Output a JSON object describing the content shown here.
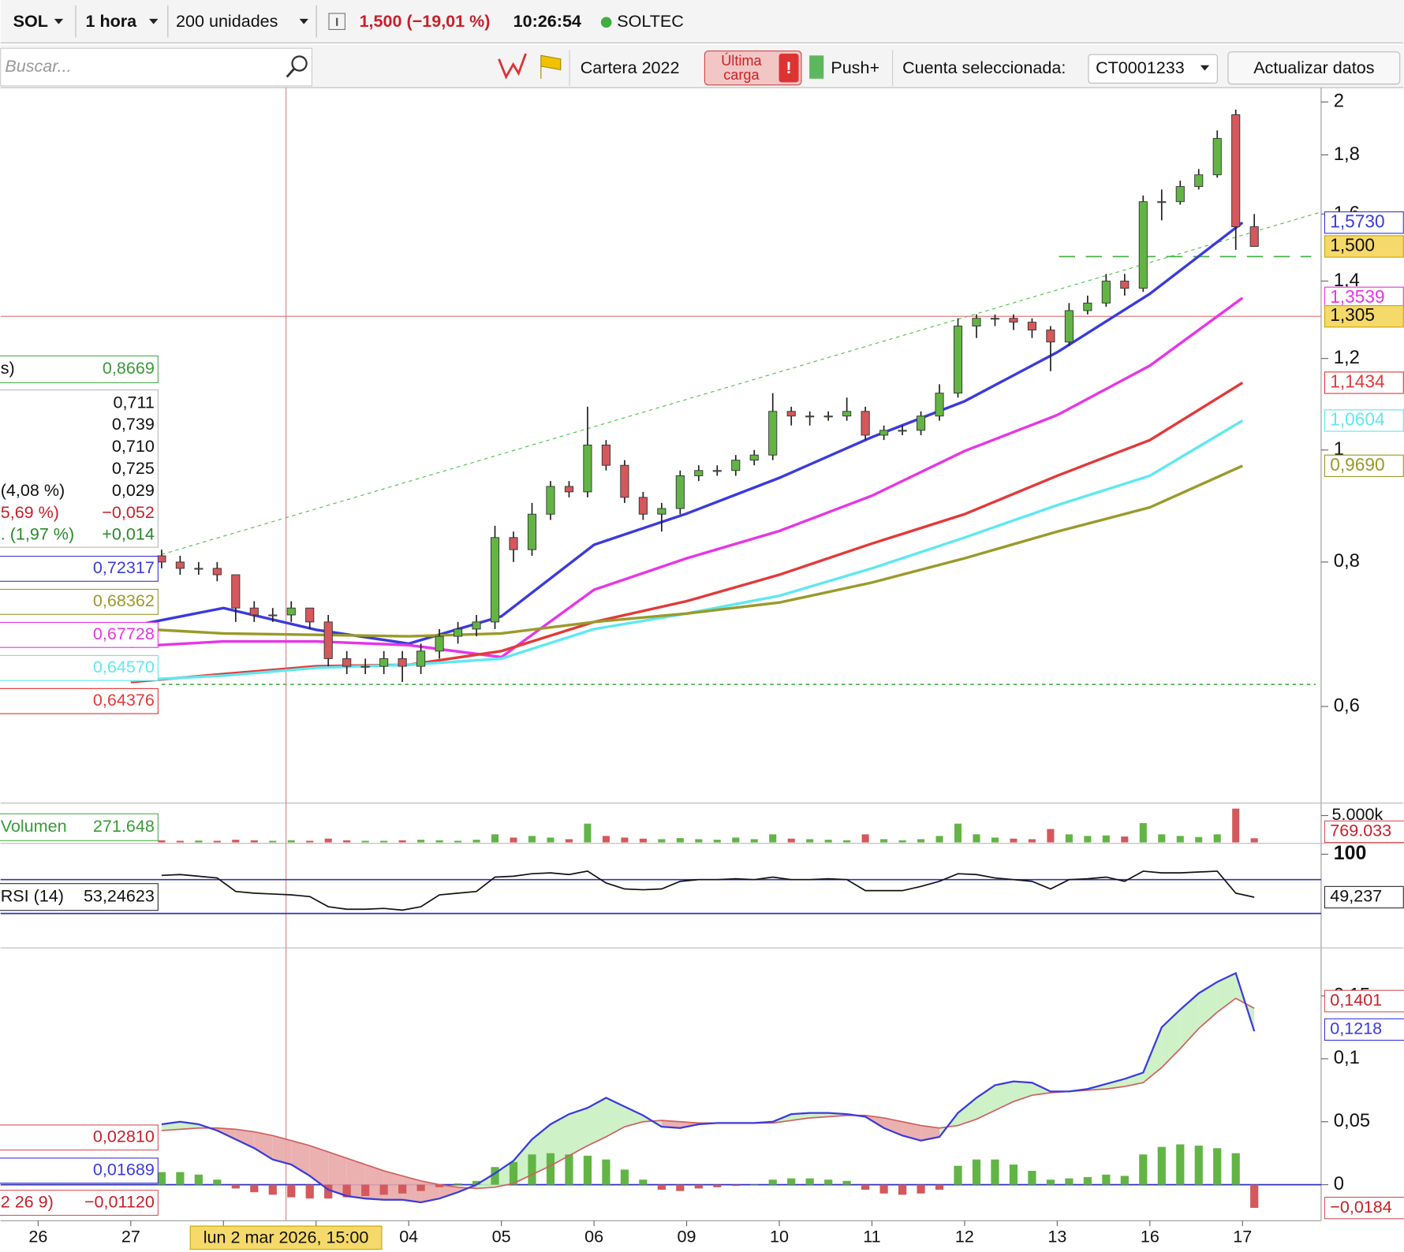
{
  "toolbar": {
    "symbol": "SOL",
    "interval": "1 hora",
    "units": "200 unidades",
    "quote": "1,500 (−19,01 %)",
    "time": "10:26:54",
    "name": "SOLTEC",
    "search": "Buscar...",
    "portfolio": "Cartera 2022",
    "last_load": [
      "Última",
      "carga"
    ],
    "push": "Push+",
    "account_label": "Cuenta seleccionada:",
    "account": "CT0001233",
    "refresh": "Actualizar datos"
  },
  "x_axis": {
    "labels": [
      "26",
      "27",
      null,
      null,
      "04",
      "05",
      "06",
      "09",
      "10",
      "11",
      "12",
      "13",
      "16",
      "17"
    ],
    "crosshair_label": "lun 2 mar 2026, 15:00"
  },
  "price": {
    "log_scale": true,
    "ylim": [
      0.495,
      2.058
    ],
    "yticks": [
      2,
      {
        "value": 1.8,
        "label": "1,8"
      },
      {
        "value": 1.6,
        "label": "1,6"
      },
      {
        "value": 1.4,
        "label": "1,4"
      },
      {
        "value": 1.2,
        "label": "1,2"
      },
      1,
      {
        "value": 0.8,
        "label": "0,8"
      },
      {
        "value": 0.6,
        "label": "0,6"
      }
    ],
    "up_color": "#62b544",
    "down_color": "#d4585c",
    "candles": [
      [
        0.81,
        0.82,
        0.79,
        0.8
      ],
      [
        0.8,
        0.81,
        0.78,
        0.79
      ],
      [
        0.79,
        0.8,
        0.78,
        0.79
      ],
      [
        0.79,
        0.8,
        0.77,
        0.78
      ],
      [
        0.78,
        0.78,
        0.71,
        0.73
      ],
      [
        0.73,
        0.74,
        0.71,
        0.72
      ],
      [
        0.72,
        0.73,
        0.71,
        0.72
      ],
      [
        0.72,
        0.74,
        0.71,
        0.73
      ],
      [
        0.73,
        0.73,
        0.7,
        0.71
      ],
      [
        0.71,
        0.72,
        0.65,
        0.66
      ],
      [
        0.66,
        0.67,
        0.64,
        0.65
      ],
      [
        0.65,
        0.66,
        0.64,
        0.65
      ],
      [
        0.65,
        0.67,
        0.64,
        0.66
      ],
      [
        0.66,
        0.67,
        0.63,
        0.65
      ],
      [
        0.65,
        0.68,
        0.64,
        0.67
      ],
      [
        0.67,
        0.7,
        0.66,
        0.69
      ],
      [
        0.69,
        0.71,
        0.68,
        0.7
      ],
      [
        0.7,
        0.72,
        0.69,
        0.71
      ],
      [
        0.71,
        0.86,
        0.7,
        0.84
      ],
      [
        0.84,
        0.85,
        0.8,
        0.82
      ],
      [
        0.82,
        0.9,
        0.81,
        0.88
      ],
      [
        0.88,
        0.94,
        0.87,
        0.93
      ],
      [
        0.93,
        0.94,
        0.91,
        0.92
      ],
      [
        0.92,
        1.09,
        0.91,
        1.01
      ],
      [
        1.01,
        1.02,
        0.96,
        0.97
      ],
      [
        0.97,
        0.98,
        0.9,
        0.91
      ],
      [
        0.91,
        0.92,
        0.87,
        0.88
      ],
      [
        0.88,
        0.9,
        0.85,
        0.89
      ],
      [
        0.89,
        0.96,
        0.88,
        0.95
      ],
      [
        0.95,
        0.97,
        0.94,
        0.96
      ],
      [
        0.96,
        0.97,
        0.95,
        0.96
      ],
      [
        0.96,
        0.99,
        0.95,
        0.98
      ],
      [
        0.98,
        1.0,
        0.97,
        0.99
      ],
      [
        0.99,
        1.12,
        0.98,
        1.08
      ],
      [
        1.08,
        1.09,
        1.05,
        1.07
      ],
      [
        1.07,
        1.08,
        1.05,
        1.07
      ],
      [
        1.07,
        1.08,
        1.06,
        1.07
      ],
      [
        1.07,
        1.11,
        1.06,
        1.08
      ],
      [
        1.08,
        1.09,
        1.02,
        1.03
      ],
      [
        1.03,
        1.05,
        1.02,
        1.04
      ],
      [
        1.04,
        1.05,
        1.03,
        1.04
      ],
      [
        1.04,
        1.08,
        1.03,
        1.07
      ],
      [
        1.07,
        1.14,
        1.06,
        1.12
      ],
      [
        1.12,
        1.3,
        1.11,
        1.28
      ],
      [
        1.28,
        1.31,
        1.25,
        1.3
      ],
      [
        1.3,
        1.31,
        1.28,
        1.3
      ],
      [
        1.3,
        1.31,
        1.27,
        1.29
      ],
      [
        1.29,
        1.3,
        1.25,
        1.27
      ],
      [
        1.27,
        1.28,
        1.17,
        1.24
      ],
      [
        1.24,
        1.34,
        1.23,
        1.32
      ],
      [
        1.32,
        1.36,
        1.31,
        1.34
      ],
      [
        1.34,
        1.42,
        1.33,
        1.4
      ],
      [
        1.4,
        1.42,
        1.36,
        1.38
      ],
      [
        1.38,
        1.66,
        1.37,
        1.64
      ],
      [
        1.64,
        1.68,
        1.58,
        1.64
      ],
      [
        1.64,
        1.71,
        1.63,
        1.69
      ],
      [
        1.69,
        1.75,
        1.68,
        1.73
      ],
      [
        1.73,
        1.89,
        1.72,
        1.86
      ],
      [
        1.95,
        1.97,
        1.49,
        1.56
      ],
      [
        1.56,
        1.6,
        1.5,
        1.5
      ]
    ],
    "moving_averages": [
      {
        "color": "#3b3bdc",
        "label": "1,5730",
        "left_label": "0,72317",
        "values": [
          null,
          0.704,
          0.73,
          0.699,
          0.68,
          0.718,
          0.828,
          0.881,
          0.946,
          1.026,
          1.102,
          1.215,
          1.365,
          1.573
        ]
      },
      {
        "color": "#e636e6",
        "label": "1,3539",
        "left_label": "0,67728",
        "values": [
          null,
          0.676,
          0.683,
          0.683,
          0.678,
          0.662,
          0.757,
          0.806,
          0.851,
          0.913,
          0.998,
          1.072,
          1.183,
          1.3539
        ]
      },
      {
        "color": "#e23a3a",
        "label": "1,1434",
        "left_label": "0,64376",
        "values": [
          null,
          0.63,
          0.64,
          0.65,
          0.652,
          0.67,
          0.71,
          0.74,
          0.78,
          0.83,
          0.88,
          0.95,
          1.02,
          1.1434
        ]
      },
      {
        "color": "#5fe8f0",
        "label": "1,0604",
        "left_label": "0,64570",
        "values": [
          null,
          0.632,
          0.638,
          0.648,
          0.652,
          0.66,
          0.7,
          0.722,
          0.748,
          0.79,
          0.84,
          0.896,
          0.95,
          1.0604
        ]
      },
      {
        "color": "#9a9a2a",
        "label": "0,9690",
        "left_label": "0,68362",
        "values": [
          null,
          0.701,
          0.694,
          0.692,
          0.69,
          0.694,
          0.71,
          0.722,
          0.738,
          0.768,
          0.806,
          0.85,
          0.892,
          0.969
        ]
      }
    ],
    "crosshair": {
      "value": 1.305,
      "label": "1,305"
    },
    "last": {
      "value": 1.5,
      "label": "1,500"
    },
    "support_lines": [
      0.627,
      1.47
    ]
  },
  "info_panel": {
    "title": "s)",
    "title_value": "0,8669",
    "rows": [
      {
        "value": "0,711"
      },
      {
        "value": "0,739"
      },
      {
        "value": "0,710"
      },
      {
        "value": "0,725"
      },
      {
        "label": "(4,08 %)",
        "value": "0,029"
      },
      {
        "label": "5,69 %)",
        "value": "−0,052"
      },
      {
        "label": ". (1,97 %)",
        "value": "+0,014"
      }
    ]
  },
  "volume": {
    "label": "Volumen",
    "value_label": "271.648",
    "last_label": "769.033",
    "ylim": [
      0,
      7000
    ],
    "yticks": [
      {
        "value": 5000,
        "label": "5.000k"
      }
    ],
    "values": [
      400,
      300,
      350,
      300,
      500,
      400,
      300,
      400,
      300,
      700,
      400,
      300,
      300,
      400,
      500,
      400,
      300,
      500,
      1500,
      900,
      1200,
      900,
      600,
      3500,
      1200,
      900,
      700,
      600,
      800,
      600,
      500,
      900,
      600,
      1500,
      700,
      600,
      500,
      400,
      1500,
      600,
      400,
      600,
      1200,
      3500,
      1500,
      900,
      700,
      600,
      2500,
      1500,
      1200,
      1300,
      1100,
      3600,
      1500,
      1200,
      1000,
      1500,
      6300,
      769.033
    ]
  },
  "rsi": {
    "label": "RSI (14)",
    "value_label": "53,24623",
    "last_label": "49,237",
    "ylim": [
      -10.7,
      112.9
    ],
    "yticks": [
      100
    ],
    "levels": [
      70,
      30
    ],
    "values": [
      75,
      76,
      74,
      72,
      56,
      54,
      53,
      52,
      50,
      38,
      35,
      35,
      36,
      34,
      38,
      52,
      54,
      56,
      73,
      74,
      77,
      78,
      76,
      80,
      66,
      59,
      58,
      59,
      68,
      70,
      70,
      71,
      70,
      73,
      70,
      70,
      71,
      70,
      57,
      57,
      57,
      62,
      68,
      77,
      76,
      72,
      70,
      68,
      59,
      70,
      71,
      73,
      68,
      80,
      78,
      78,
      79,
      80,
      54,
      49.237
    ]
  },
  "macd": {
    "params_label": "2 26 9)",
    "signal_left": "0,02810",
    "macd_left": "0,01689",
    "hist_left": "−0,01120",
    "signal_label": "0,1401",
    "macd_label": "0,1218",
    "hist_label": "−0,0184",
    "ylim": [
      -0.0286,
      0.188
    ],
    "yticks": [
      {
        "value": 0.15,
        "label": "0,15"
      },
      {
        "value": 0.1,
        "label": "0,1"
      },
      {
        "value": 0.05,
        "label": "0,05"
      },
      0
    ],
    "macd": [
      0.048,
      0.05,
      0.048,
      0.043,
      0.036,
      0.029,
      0.02,
      0.016,
      0.007,
      -0.004,
      -0.009,
      -0.011,
      -0.012,
      -0.012,
      -0.014,
      -0.011,
      -0.006,
      0.0,
      0.009,
      0.019,
      0.036,
      0.048,
      0.056,
      0.061,
      0.069,
      0.062,
      0.055,
      0.046,
      0.045,
      0.048,
      0.049,
      0.049,
      0.049,
      0.05,
      0.056,
      0.057,
      0.057,
      0.056,
      0.054,
      0.045,
      0.039,
      0.035,
      0.038,
      0.057,
      0.069,
      0.079,
      0.082,
      0.081,
      0.074,
      0.074,
      0.076,
      0.08,
      0.084,
      0.089,
      0.125,
      0.139,
      0.152,
      0.161,
      0.168,
      0.1218
    ],
    "signal": [
      0.043,
      0.044,
      0.045,
      0.045,
      0.044,
      0.042,
      0.039,
      0.035,
      0.031,
      0.026,
      0.021,
      0.016,
      0.011,
      0.007,
      0.003,
      0.0,
      -0.002,
      -0.003,
      -0.002,
      0.001,
      0.008,
      0.015,
      0.023,
      0.031,
      0.038,
      0.046,
      0.05,
      0.051,
      0.05,
      0.049,
      0.049,
      0.049,
      0.049,
      0.049,
      0.051,
      0.053,
      0.054,
      0.055,
      0.055,
      0.053,
      0.05,
      0.047,
      0.045,
      0.047,
      0.052,
      0.059,
      0.066,
      0.071,
      0.073,
      0.074,
      0.075,
      0.076,
      0.078,
      0.081,
      0.093,
      0.108,
      0.124,
      0.137,
      0.148,
      0.1401
    ],
    "histogram": [
      0.01,
      0.01,
      0.008,
      0.004,
      -0.003,
      -0.006,
      -0.008,
      -0.01,
      -0.011,
      -0.011,
      -0.01,
      -0.009,
      -0.008,
      -0.007,
      -0.005,
      -0.002,
      0.001,
      0.003,
      0.014,
      0.018,
      0.024,
      0.025,
      0.024,
      0.023,
      0.02,
      0.012,
      0.004,
      -0.004,
      -0.005,
      -0.003,
      -0.002,
      -0.001,
      0.0,
      0.004,
      0.005,
      0.005,
      0.004,
      0.003,
      -0.004,
      -0.007,
      -0.008,
      -0.007,
      -0.004,
      0.015,
      0.02,
      0.02,
      0.016,
      0.011,
      0.004,
      0.005,
      0.006,
      0.008,
      0.007,
      0.024,
      0.03,
      0.032,
      0.031,
      0.029,
      0.025,
      -0.0184
    ]
  }
}
